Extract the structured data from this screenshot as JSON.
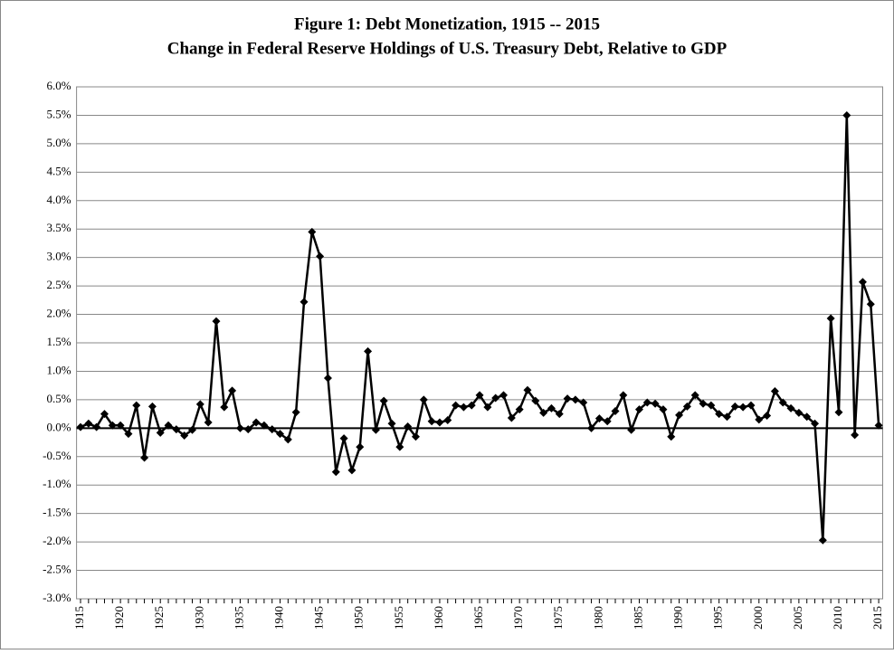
{
  "chart_data": {
    "type": "line",
    "title": "Figure 1: Debt Monetization, 1915 -- 2015",
    "subtitle": "Change in Federal Reserve Holdings of U.S. Treasury Debt, Relative to GDP",
    "x": [
      1915,
      1916,
      1917,
      1918,
      1919,
      1920,
      1921,
      1922,
      1923,
      1924,
      1925,
      1926,
      1927,
      1928,
      1929,
      1930,
      1931,
      1932,
      1933,
      1934,
      1935,
      1936,
      1937,
      1938,
      1939,
      1940,
      1941,
      1942,
      1943,
      1944,
      1945,
      1946,
      1947,
      1948,
      1949,
      1950,
      1951,
      1952,
      1953,
      1954,
      1955,
      1956,
      1957,
      1958,
      1959,
      1960,
      1961,
      1962,
      1963,
      1964,
      1965,
      1966,
      1967,
      1968,
      1969,
      1970,
      1971,
      1972,
      1973,
      1974,
      1975,
      1976,
      1977,
      1978,
      1979,
      1980,
      1981,
      1982,
      1983,
      1984,
      1985,
      1986,
      1987,
      1988,
      1989,
      1990,
      1991,
      1992,
      1993,
      1994,
      1995,
      1996,
      1997,
      1998,
      1999,
      2000,
      2001,
      2002,
      2003,
      2004,
      2005,
      2006,
      2007,
      2008,
      2009,
      2010,
      2011,
      2012,
      2013,
      2014,
      2015
    ],
    "series": [
      {
        "color": "#000000",
        "values": [
          0.02,
          0.08,
          0.02,
          0.25,
          0.05,
          0.05,
          -0.1,
          0.4,
          -0.52,
          0.38,
          -0.08,
          0.05,
          -0.02,
          -0.13,
          -0.03,
          0.42,
          0.1,
          1.88,
          0.37,
          0.66,
          0.0,
          -0.02,
          0.1,
          0.05,
          -0.02,
          -0.1,
          -0.2,
          0.28,
          2.22,
          3.45,
          3.02,
          0.88,
          -0.77,
          -0.18,
          -0.74,
          -0.33,
          1.35,
          -0.03,
          0.48,
          0.08,
          -0.33,
          0.03,
          -0.15,
          0.5,
          0.12,
          0.1,
          0.14,
          0.4,
          0.37,
          0.4,
          0.58,
          0.37,
          0.53,
          0.58,
          0.18,
          0.33,
          0.67,
          0.48,
          0.27,
          0.35,
          0.25,
          0.52,
          0.5,
          0.45,
          0.0,
          0.17,
          0.12,
          0.3,
          0.58,
          -0.03,
          0.33,
          0.45,
          0.43,
          0.33,
          -0.15,
          0.23,
          0.38,
          0.58,
          0.43,
          0.4,
          0.25,
          0.2,
          0.38,
          0.37,
          0.4,
          0.15,
          0.22,
          0.65,
          0.45,
          0.35,
          0.27,
          0.2,
          0.08,
          -1.97,
          1.93,
          0.28,
          5.5,
          -0.12,
          2.57,
          2.18,
          0.05
        ]
      }
    ],
    "xlim": [
      1914.5,
      2015.5
    ],
    "xticks": [
      1915,
      1920,
      1925,
      1930,
      1935,
      1940,
      1945,
      1950,
      1955,
      1960,
      1965,
      1970,
      1975,
      1980,
      1985,
      1990,
      1995,
      2000,
      2005,
      2010,
      2015
    ],
    "ylim": [
      -3,
      6
    ],
    "yticks": [
      {
        "value": -3,
        "label": "-3.0%"
      },
      {
        "value": -2.5,
        "label": "-2.5%"
      },
      {
        "value": -2,
        "label": "-2.0%"
      },
      {
        "value": -1.5,
        "label": "-1.5%"
      },
      {
        "value": -1,
        "label": "-1.0%"
      },
      {
        "value": -0.5,
        "label": "-0.5%"
      },
      {
        "value": 0,
        "label": "0.0%"
      },
      {
        "value": 0.5,
        "label": "0.5%"
      },
      {
        "value": 1,
        "label": "1.0%"
      },
      {
        "value": 1.5,
        "label": "1.5%"
      },
      {
        "value": 2,
        "label": "2.0%"
      },
      {
        "value": 2.5,
        "label": "2.5%"
      },
      {
        "value": 3,
        "label": "3.0%"
      },
      {
        "value": 3.5,
        "label": "3.5%"
      },
      {
        "value": 4,
        "label": "4.0%"
      },
      {
        "value": 4.5,
        "label": "4.5%"
      },
      {
        "value": 5,
        "label": "5.0%"
      },
      {
        "value": 5.5,
        "label": "5.5%"
      },
      {
        "value": 6,
        "label": "6.0%"
      }
    ],
    "grid": true
  }
}
